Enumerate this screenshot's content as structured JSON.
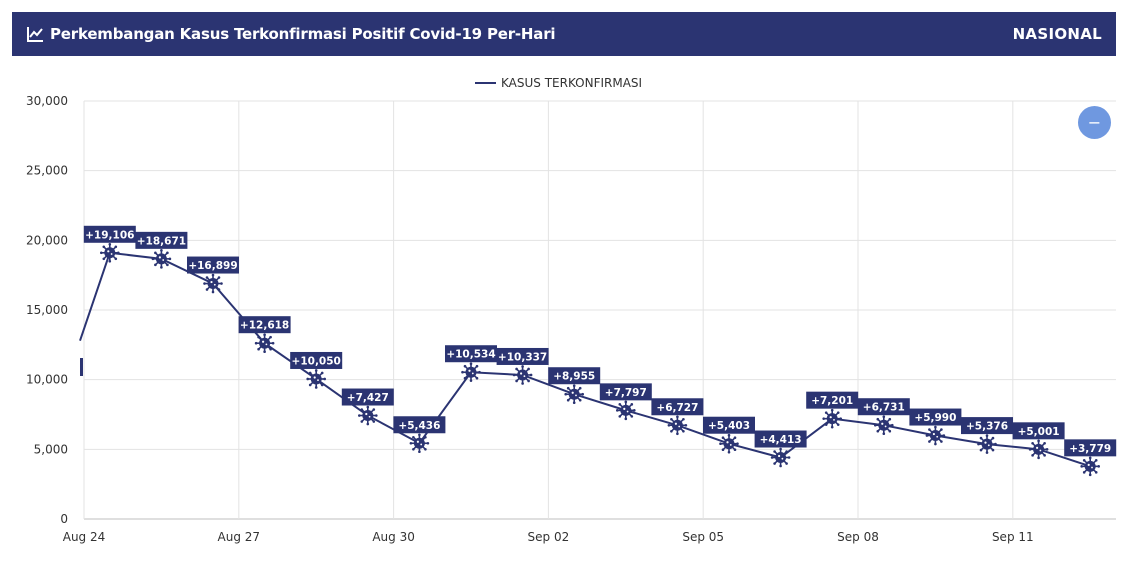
{
  "header": {
    "title": "Perkembangan Kasus Terkonfirmasi Positif Covid-19 Per-Hari",
    "scope": "NASIONAL",
    "icon": "line-chart-icon"
  },
  "zoom_button": {
    "label": "−",
    "icon": "minus-icon"
  },
  "colors": {
    "header_bg": "#2b3472",
    "series": "#2b3472",
    "label_bg": "#2b3472",
    "zoom": "#6f98e0",
    "grid": "#e3e3e3"
  },
  "chart_data": {
    "type": "line",
    "legend": [
      "KASUS TERKONFIRMASI"
    ],
    "legend_position": "top-center",
    "grid": true,
    "ylim": [
      0,
      30000
    ],
    "yticks": [
      0,
      5000,
      10000,
      15000,
      20000,
      25000,
      30000
    ],
    "ytick_labels": [
      "0",
      "5,000",
      "10,000",
      "15,000",
      "20,000",
      "25,000",
      "30,000"
    ],
    "xticks": [
      "Aug 24",
      "Aug 27",
      "Aug 30",
      "Sep 02",
      "Sep 05",
      "Sep 08",
      "Sep 11"
    ],
    "x": [
      "2021-08-24",
      "2021-08-25",
      "2021-08-26",
      "2021-08-27",
      "2021-08-28",
      "2021-08-29",
      "2021-08-30",
      "2021-08-31",
      "2021-09-01",
      "2021-09-02",
      "2021-09-03",
      "2021-09-04",
      "2021-09-05",
      "2021-09-06",
      "2021-09-07",
      "2021-09-08",
      "2021-09-09",
      "2021-09-10",
      "2021-09-11",
      "2021-09-12"
    ],
    "series": [
      {
        "name": "KASUS TERKONFIRMASI",
        "values": [
          19106,
          18671,
          16899,
          12618,
          10050,
          7427,
          5436,
          10534,
          10337,
          8955,
          7797,
          6727,
          5403,
          4413,
          7201,
          6731,
          5990,
          5376,
          5001,
          3779
        ],
        "labels": [
          "+19,106",
          "+18,671",
          "+16,899",
          "+12,618",
          "+10,050",
          "+7,427",
          "+5,436",
          "+10,534",
          "+10,337",
          "+8,955",
          "+7,797",
          "+6,727",
          "+5,403",
          "+4,413",
          "+7,201",
          "+6,731",
          "+5,990",
          "+5,376",
          "+5,001",
          "+3,779"
        ]
      }
    ]
  }
}
